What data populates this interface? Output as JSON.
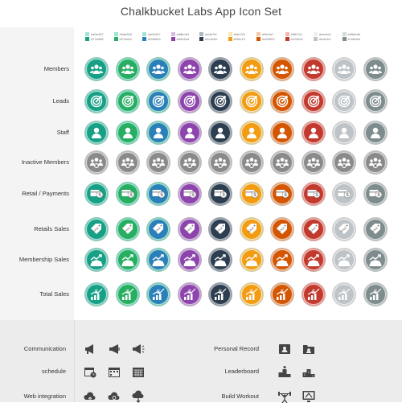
{
  "title": "Chalkbucket Labs App Icon Set",
  "palette": [
    {
      "light": "#a0e4d7",
      "dark": "#17a086",
      "light_label": "#a0e4d7",
      "dark_label": "#17a086"
    },
    {
      "light": "#9ae8d0",
      "dark": "#27ae61",
      "light_label": "#9ae8d0",
      "dark_label": "#27ae61"
    },
    {
      "light": "#a0e4d7",
      "dark": "#2b80b9",
      "light_label": "#a0e4d7",
      "dark_label": "#2b80b9"
    },
    {
      "light": "#d8bde3",
      "dark": "#8d44ad",
      "light_label": "#d8bde3",
      "dark_label": "#8d44ad"
    },
    {
      "light": "#adb7bf",
      "dark": "#2c3e50",
      "light_label": "#adb7bf",
      "dark_label": "#2c3e50"
    },
    {
      "light": "#fae7b0",
      "dark": "#f39c13",
      "light_label": "#fae7b0",
      "dark_label": "#f39c13"
    },
    {
      "light": "#f5c9a7",
      "dark": "#d45502",
      "light_label": "#f5c9a7",
      "dark_label": "#d45502"
    },
    {
      "light": "#f5b7b1",
      "dark": "#c23a2e",
      "light_label": "#f5b7b1",
      "dark_label": "#c23a2e"
    },
    {
      "light": "#eeeeef",
      "dark": "#bdc3c7",
      "light_label": "#eeeeef",
      "dark_label": "#bdc3c7"
    },
    {
      "light": "#d5dbdb",
      "dark": "#7e8c8d",
      "light_label": "#d5dbdb",
      "dark_label": "#7e8c8d"
    }
  ],
  "rows": [
    {
      "label": "Members",
      "icon": "group-icon"
    },
    {
      "label": "Leads",
      "icon": "target-icon"
    },
    {
      "label": "Staff",
      "icon": "user-icon"
    },
    {
      "label": "Inactive Members",
      "icon": "inactive-group-icon"
    },
    {
      "label": "Retail / Payments",
      "icon": "payment-card-icon"
    },
    {
      "label": "Retails Sales",
      "icon": "sale-tag-icon"
    },
    {
      "label": "Membership Sales",
      "icon": "growth-group-icon"
    },
    {
      "label": "Total Sales",
      "icon": "revenue-chart-icon"
    }
  ],
  "bottom": {
    "left": [
      {
        "label": "Communication",
        "icons": [
          "megaphone-icon",
          "megaphone-outline-icon",
          "megaphone-loud-icon"
        ]
      },
      {
        "label": "schedule",
        "icons": [
          "calendar-clock-icon",
          "calendar-icon",
          "calendar-grid-icon"
        ]
      },
      {
        "label": "Web integration",
        "icons": [
          "cloud-upload-icon",
          "cloud-sync-icon",
          "cloud-download-icon"
        ]
      }
    ],
    "right": [
      {
        "label": "Personal Record",
        "icons": [
          "profile-card-icon",
          "profile-folder-icon"
        ]
      },
      {
        "label": "Leaderboard",
        "icons": [
          "podium-icon",
          "podium-numbered-icon"
        ]
      },
      {
        "label": "Build Workout",
        "icons": [
          "weightlifter-icon",
          "workout-screen-icon"
        ]
      }
    ]
  }
}
